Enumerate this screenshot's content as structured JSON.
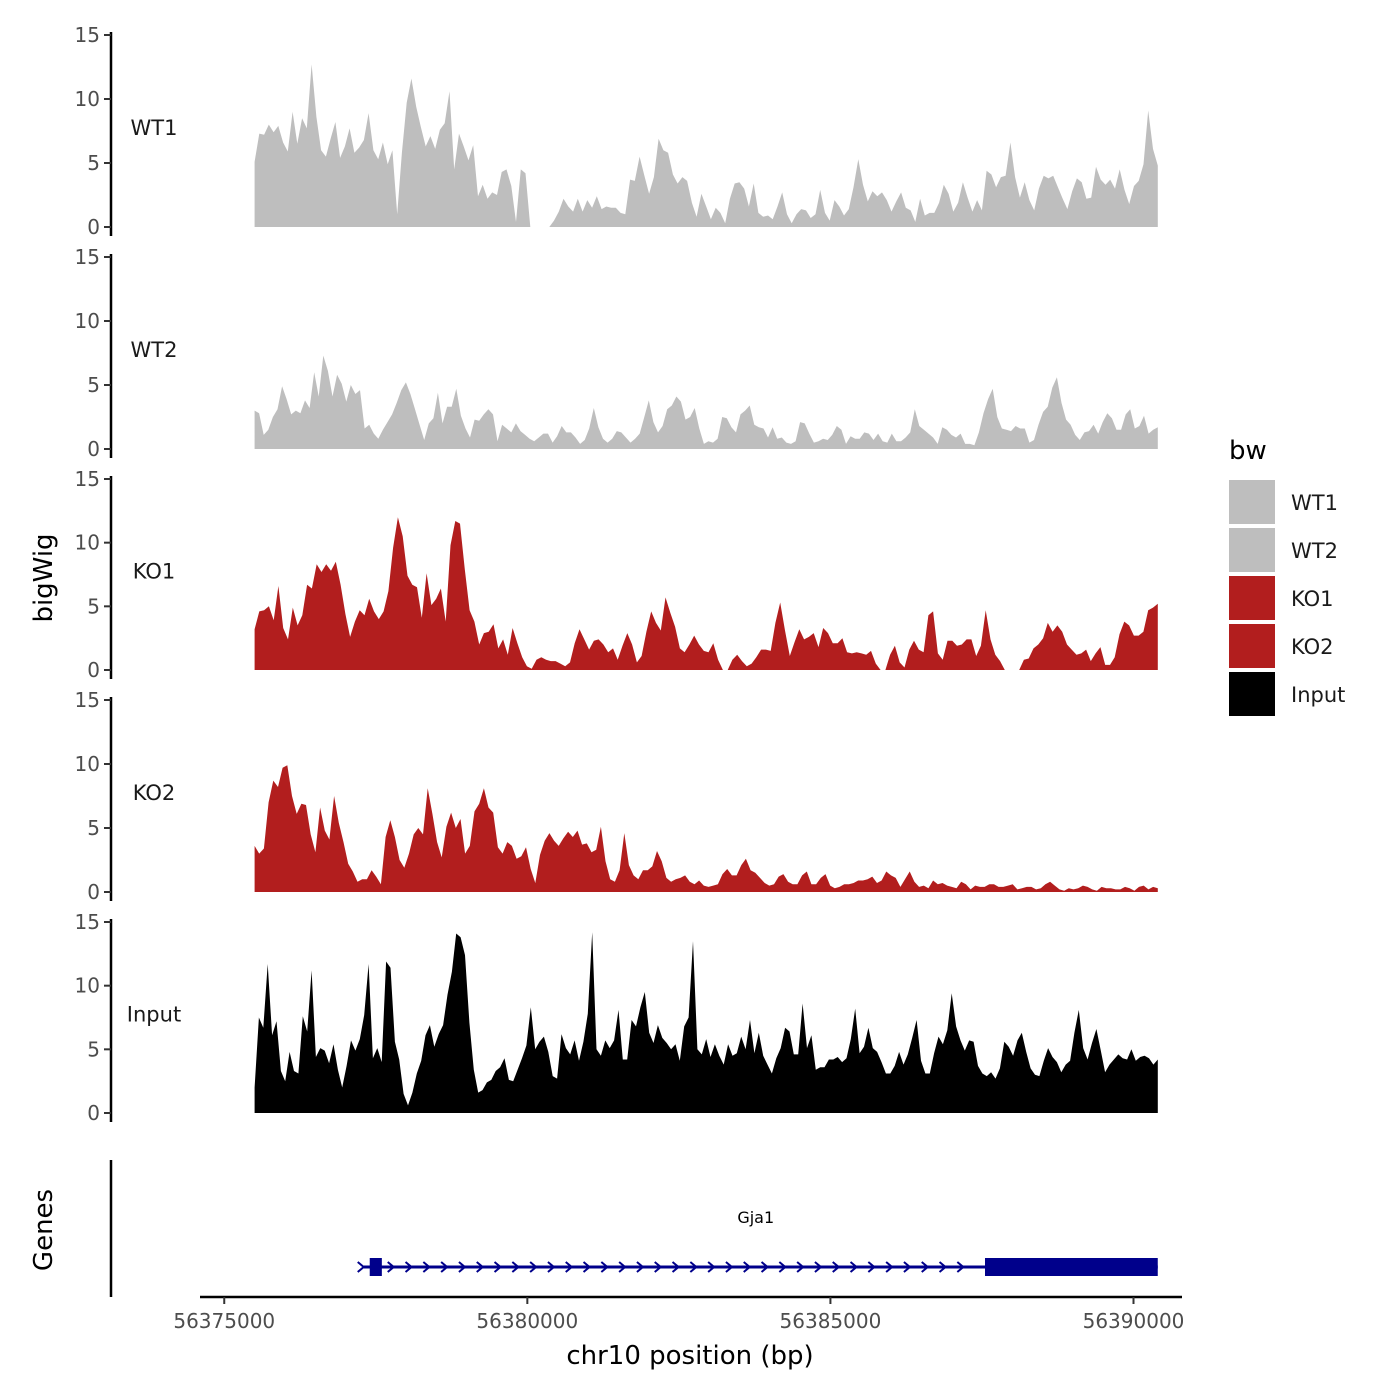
{
  "chart_data": {
    "type": "area",
    "title": "",
    "ylabel": "bigWig",
    "xlabel": "chr10 position (bp)",
    "genes_label": "Genes",
    "x_range": [
      56375500,
      56390400
    ],
    "xlim": [
      56374600,
      56390800
    ],
    "x_ticks": [
      56375000,
      56380000,
      56385000,
      56390000
    ],
    "x_tick_labels": [
      "56375000",
      "56380000",
      "56385000",
      "56390000"
    ],
    "ylim": [
      0,
      15
    ],
    "y_ticks": [
      0,
      5,
      10,
      15
    ],
    "y_tick_labels": [
      "0",
      "5",
      "10",
      "15"
    ],
    "legend": {
      "title": "bw",
      "entries": [
        {
          "label": "WT1",
          "color": "#bebebe"
        },
        {
          "label": "WT2",
          "color": "#bebebe"
        },
        {
          "label": "KO1",
          "color": "#b21e1e"
        },
        {
          "label": "KO2",
          "color": "#b21e1e"
        },
        {
          "label": "Input",
          "color": "#000000"
        }
      ]
    },
    "series": [
      {
        "name": "WT1",
        "color": "#bebebe",
        "values": [
          5.1,
          7.3,
          7.2,
          8.0,
          7.4,
          7.9,
          6.6,
          5.9,
          9.0,
          6.5,
          8.5,
          7.7,
          12.7,
          8.6,
          6.0,
          5.5,
          6.9,
          8.2,
          5.4,
          6.3,
          7.7,
          5.8,
          6.2,
          6.8,
          8.9,
          6.0,
          5.3,
          6.6,
          4.9,
          6.0,
          1.0,
          5.8,
          9.7,
          11.6,
          9.4,
          7.8,
          6.3,
          7.1,
          6.1,
          7.6,
          8.1,
          10.6,
          4.5,
          7.3,
          6.3,
          5.2,
          6.4,
          2.4,
          3.3,
          2.2,
          2.7,
          2.5,
          4.3,
          4.5,
          3.2,
          0.4,
          4.5,
          4.2,
          0,
          0,
          0,
          0,
          0,
          0.5,
          1.2,
          2.2,
          1.6,
          1.2,
          2.2,
          1.2,
          2.1,
          1.5,
          2.4,
          1.4,
          1.6,
          1.5,
          1.5,
          1.1,
          1.0,
          3.7,
          3.6,
          5.5,
          4.0,
          2.6,
          3.9,
          6.9,
          6.0,
          5.8,
          4.1,
          3.4,
          3.9,
          3.6,
          1.9,
          0.8,
          2.6,
          1.6,
          0.6,
          1.5,
          1.1,
          0.3,
          2.2,
          3.4,
          3.5,
          3.0,
          1.6,
          3.4,
          1.1,
          0.8,
          0.9,
          0.6,
          1.6,
          2.7,
          1.0,
          0.3,
          1.0,
          1.4,
          1.3,
          0.7,
          1.0,
          2.9,
          1.1,
          0.5,
          2.1,
          1.6,
          0.9,
          1.4,
          3.1,
          5.3,
          3.3,
          2.0,
          2.8,
          2.4,
          2.7,
          2.1,
          1.2,
          2.0,
          2.7,
          1.5,
          1.3,
          0.4,
          2.2,
          0.9,
          1.1,
          1.1,
          1.9,
          3.3,
          2.6,
          1.2,
          1.9,
          3.5,
          2.3,
          1.2,
          2.1,
          1.3,
          4.4,
          4.1,
          3.1,
          3.9,
          4.0,
          6.6,
          3.9,
          2.3,
          3.5,
          2.1,
          1.3,
          3.0,
          4.0,
          3.8,
          4.0,
          3.1,
          2.2,
          1.4,
          2.8,
          3.8,
          3.5,
          2.2,
          2.3,
          4.7,
          3.7,
          3.3,
          3.7,
          3.0,
          4.5,
          2.9,
          1.8,
          3.2,
          3.6,
          4.9,
          9.1,
          6.1,
          4.8
        ]
      },
      {
        "name": "WT2",
        "color": "#bebebe",
        "values": [
          3.0,
          2.8,
          1.1,
          1.5,
          2.5,
          3.1,
          4.9,
          3.9,
          2.7,
          3.0,
          2.8,
          3.8,
          3.2,
          6.0,
          4.1,
          7.3,
          6.1,
          4.1,
          5.8,
          5.1,
          3.7,
          5.0,
          4.3,
          4.6,
          1.6,
          1.9,
          1.2,
          0.8,
          1.5,
          2.1,
          2.7,
          3.6,
          4.6,
          5.2,
          4.3,
          3.1,
          1.9,
          0.7,
          2.0,
          2.4,
          4.4,
          2.0,
          3.3,
          3.3,
          4.7,
          2.6,
          1.6,
          0.9,
          2.3,
          2.2,
          2.7,
          3.1,
          2.7,
          0.6,
          1.9,
          1.6,
          1.3,
          2.0,
          1.4,
          1.1,
          0.8,
          0.6,
          0.9,
          1.2,
          1.2,
          0.5,
          1.0,
          1.8,
          1.3,
          1.3,
          0.9,
          0.4,
          0.7,
          1.6,
          3.2,
          1.7,
          0.8,
          0.5,
          0.8,
          1.4,
          1.3,
          0.9,
          0.5,
          0.8,
          1.2,
          2.5,
          3.8,
          2.1,
          1.3,
          1.8,
          3.1,
          3.4,
          4.1,
          3.7,
          2.3,
          2.5,
          3.2,
          1.6,
          0.4,
          0.6,
          0.5,
          0.8,
          2.5,
          2.4,
          1.7,
          1.3,
          2.7,
          3.0,
          3.4,
          1.9,
          1.7,
          1.6,
          0.9,
          1.7,
          0.8,
          0.9,
          0.5,
          0.4,
          0.6,
          2.1,
          2.0,
          1.2,
          0.5,
          0.6,
          0.8,
          0.7,
          1.1,
          1.8,
          1.5,
          0.4,
          1.0,
          0.8,
          0.8,
          1.3,
          1.2,
          0.7,
          1.2,
          0.6,
          0.5,
          1.2,
          0.6,
          0.6,
          0.9,
          1.3,
          3.1,
          1.8,
          1.5,
          1.2,
          0.9,
          0.4,
          1.7,
          1.5,
          1.1,
          0.9,
          1.2,
          0.4,
          0.4,
          0.3,
          1.3,
          2.8,
          3.9,
          4.7,
          2.5,
          1.6,
          1.5,
          1.4,
          1.8,
          1.6,
          1.6,
          0.5,
          0.7,
          1.9,
          2.9,
          3.3,
          4.8,
          5.6,
          3.6,
          2.3,
          1.9,
          1.1,
          0.7,
          1.3,
          1.4,
          1.9,
          1.2,
          2.1,
          2.8,
          2.4,
          1.5,
          1.5,
          2.7,
          3.1,
          1.6,
          1.8,
          2.6,
          1.2,
          1.5,
          1.7
        ]
      },
      {
        "name": "KO1",
        "color": "#b21e1e",
        "values": [
          3.2,
          4.6,
          4.7,
          5.0,
          3.9,
          6.6,
          3.3,
          2.4,
          4.9,
          3.5,
          4.3,
          6.7,
          6.4,
          8.3,
          7.7,
          8.3,
          7.8,
          8.5,
          6.7,
          4.4,
          2.6,
          3.8,
          4.7,
          4.3,
          5.6,
          4.6,
          4.0,
          4.6,
          6.2,
          9.6,
          12.0,
          10.5,
          7.4,
          6.7,
          6.5,
          4.1,
          7.6,
          5.1,
          5.6,
          6.4,
          3.8,
          9.8,
          11.7,
          11.5,
          7.9,
          4.7,
          3.8,
          2.0,
          2.9,
          3.0,
          3.6,
          1.7,
          2.4,
          1.2,
          3.3,
          2.1,
          1.0,
          0.3,
          0.1,
          0.8,
          1.0,
          0.8,
          0.7,
          0.7,
          0.5,
          0.3,
          0.6,
          2.1,
          3.2,
          2.4,
          1.6,
          2.3,
          2.4,
          2.0,
          1.4,
          1.7,
          0.8,
          1.9,
          2.9,
          2.0,
          0.6,
          1.1,
          3.0,
          4.6,
          3.7,
          3.1,
          5.7,
          4.5,
          3.4,
          1.7,
          1.4,
          2.0,
          2.7,
          2.0,
          1.5,
          1.4,
          2.1,
          0.8,
          0,
          0,
          0.8,
          1.2,
          0.7,
          0.3,
          0.5,
          1.0,
          1.6,
          1.6,
          1.5,
          3.7,
          5.3,
          3.1,
          1.1,
          2.2,
          3.2,
          2.4,
          2.6,
          2.9,
          1.8,
          3.3,
          2.9,
          2.1,
          2.1,
          2.5,
          1.4,
          1.3,
          1.4,
          1.3,
          1.2,
          1.5,
          0.5,
          0,
          0,
          1.2,
          1.9,
          0.6,
          0.2,
          1.6,
          2.3,
          1.6,
          1.4,
          4.3,
          4.6,
          1.3,
          0.8,
          2.3,
          2.3,
          1.9,
          2.0,
          2.4,
          2.4,
          1.1,
          1.9,
          4.7,
          2.4,
          1.2,
          0.7,
          0,
          0,
          0,
          0,
          0.8,
          0.9,
          1.7,
          2.0,
          2.5,
          3.7,
          3.0,
          3.5,
          3.0,
          2.0,
          1.6,
          1.2,
          1.3,
          1.6,
          0.7,
          1.3,
          1.8,
          0.4,
          0.4,
          1.0,
          2.8,
          3.8,
          3.5,
          2.7,
          2.7,
          3.0,
          4.7,
          4.9,
          5.2
        ]
      },
      {
        "name": "KO2",
        "color": "#b21e1e",
        "values": [
          3.6,
          3.0,
          3.4,
          7.0,
          8.7,
          8.2,
          9.7,
          9.9,
          7.5,
          6.1,
          6.9,
          6.8,
          4.5,
          3.1,
          6.6,
          4.8,
          4.1,
          7.5,
          5.4,
          3.9,
          2.2,
          1.6,
          0.8,
          1.0,
          1.0,
          1.7,
          1.2,
          0.6,
          4.3,
          5.6,
          4.3,
          2.5,
          1.9,
          3.0,
          4.5,
          5.0,
          4.5,
          8.1,
          6.1,
          3.9,
          2.7,
          5.1,
          6.2,
          5.0,
          5.7,
          3.0,
          3.6,
          6.3,
          6.9,
          8.1,
          6.6,
          6.2,
          3.5,
          3.0,
          3.9,
          3.6,
          2.6,
          2.8,
          3.5,
          1.8,
          0.7,
          2.9,
          4.0,
          4.6,
          4.0,
          3.6,
          4.2,
          4.7,
          4.3,
          4.8,
          3.7,
          3.8,
          3.1,
          3.3,
          5.1,
          2.4,
          1.0,
          0.8,
          1.7,
          4.6,
          2.1,
          1.3,
          1.0,
          1.7,
          1.7,
          2.0,
          3.2,
          2.4,
          1.1,
          0.8,
          1.0,
          1.1,
          1.3,
          0.8,
          0.6,
          0.9,
          0.5,
          0.4,
          0.5,
          0.6,
          1.4,
          1.8,
          1.3,
          1.3,
          2.1,
          2.6,
          1.7,
          1.5,
          1.1,
          0.7,
          0.5,
          0.6,
          1.2,
          1.4,
          0.8,
          0.6,
          0.6,
          1.3,
          1.6,
          0.6,
          0.6,
          1.1,
          1.4,
          0.5,
          0.3,
          0.4,
          0.6,
          0.6,
          0.7,
          0.9,
          0.9,
          1.0,
          1.2,
          0.7,
          0.9,
          1.6,
          1.3,
          1.1,
          0.4,
          1.0,
          1.6,
          0.8,
          0.4,
          0.5,
          0.3,
          0.9,
          0.6,
          0.7,
          0.5,
          0.4,
          0.3,
          0.8,
          0.6,
          0.2,
          0.5,
          0.4,
          0.4,
          0.6,
          0.6,
          0.4,
          0.4,
          0.5,
          0.6,
          0.2,
          0.3,
          0.4,
          0.4,
          0.2,
          0.3,
          0.6,
          0.8,
          0.5,
          0.2,
          0.1,
          0.3,
          0.2,
          0.3,
          0.5,
          0.4,
          0.2,
          0.1,
          0.4,
          0.3,
          0.3,
          0.2,
          0.2,
          0.4,
          0.3,
          0.1,
          0.4,
          0.5,
          0.2,
          0.4,
          0.3
        ]
      },
      {
        "name": "Input",
        "color": "#000000",
        "values": [
          2.0,
          7.5,
          6.7,
          11.7,
          6.1,
          7.2,
          3.3,
          2.5,
          4.8,
          3.3,
          3.1,
          7.6,
          6.4,
          11.2,
          4.4,
          5.1,
          4.9,
          3.9,
          5.4,
          3.4,
          2.0,
          3.7,
          5.7,
          4.9,
          5.8,
          7.7,
          11.7,
          4.3,
          5.1,
          4.0,
          11.9,
          11.4,
          5.6,
          4.2,
          1.5,
          0.6,
          1.6,
          3.1,
          4.1,
          6.1,
          6.9,
          5.2,
          6.2,
          6.9,
          9.3,
          11.1,
          14.1,
          13.8,
          12.4,
          7.1,
          3.4,
          1.6,
          1.8,
          2.4,
          2.6,
          3.3,
          3.6,
          4.3,
          2.6,
          2.5,
          3.4,
          4.3,
          5.3,
          8.3,
          5.0,
          5.6,
          6.0,
          4.8,
          2.9,
          2.7,
          6.2,
          5.1,
          4.6,
          5.7,
          4.1,
          5.6,
          7.8,
          14.2,
          5.0,
          4.5,
          5.7,
          5.1,
          5.7,
          8.1,
          4.2,
          4.2,
          7.3,
          6.8,
          8.3,
          9.5,
          6.3,
          5.5,
          6.9,
          5.9,
          5.5,
          5.0,
          5.4,
          4.1,
          6.8,
          7.5,
          13.5,
          5.0,
          4.6,
          5.8,
          4.4,
          5.4,
          4.5,
          3.8,
          5.4,
          4.5,
          4.7,
          6.0,
          5.0,
          7.3,
          4.7,
          6.3,
          4.5,
          3.8,
          3.1,
          4.3,
          5.1,
          6.7,
          6.4,
          4.6,
          4.6,
          8.6,
          5.1,
          6.1,
          3.4,
          3.6,
          3.6,
          4.2,
          4.2,
          4.4,
          4.0,
          4.3,
          5.8,
          8.2,
          4.7,
          5.2,
          6.7,
          5.1,
          4.8,
          4.0,
          3.1,
          3.1,
          3.7,
          4.8,
          3.8,
          4.6,
          5.9,
          7.3,
          4.1,
          3.1,
          3.1,
          4.7,
          6.0,
          5.4,
          6.5,
          9.4,
          6.8,
          5.7,
          4.9,
          5.7,
          5.6,
          3.7,
          3.1,
          2.9,
          3.2,
          2.7,
          3.5,
          5.6,
          5.2,
          4.5,
          5.7,
          6.3,
          4.8,
          3.5,
          3.0,
          2.9,
          4.1,
          5.1,
          4.4,
          4.0,
          3.2,
          3.8,
          4.1,
          6.3,
          8.1,
          5.1,
          4.2,
          5.5,
          6.6,
          4.9,
          3.2,
          3.8,
          4.2,
          4.6,
          4.3,
          4.2,
          5.0,
          4.1,
          4.4,
          4.5,
          4.3,
          3.8,
          4.2
        ]
      }
    ],
    "genes": [
      {
        "name": "Gja1",
        "strand": "+",
        "color": "#00008b",
        "start": 56377400,
        "end": 56390400,
        "exons": [
          [
            56377400,
            56377600
          ],
          [
            56387550,
            56390400
          ]
        ]
      }
    ]
  }
}
